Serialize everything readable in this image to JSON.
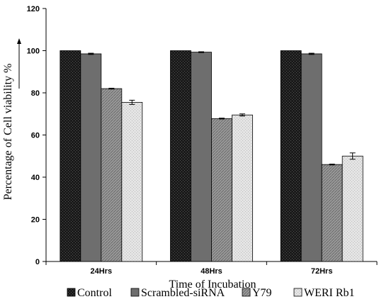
{
  "chart_data": {
    "type": "bar",
    "categories": [
      "24Hrs",
      "48Hrs",
      "72Hrs"
    ],
    "series": [
      {
        "name": "Control",
        "values": [
          100,
          100,
          100
        ],
        "errors": [
          0,
          0,
          0
        ],
        "pattern": "dark"
      },
      {
        "name": "Scrambled-siRNA",
        "values": [
          98.5,
          99.3,
          98.5
        ],
        "errors": [
          0.3,
          0.2,
          0.3
        ],
        "pattern": "grey"
      },
      {
        "name": "Y79",
        "values": [
          82,
          67.8,
          46
        ],
        "errors": [
          0.2,
          0.2,
          0.2
        ],
        "pattern": "hatch"
      },
      {
        "name": "WERI Rb1",
        "values": [
          75.5,
          69.5,
          50
        ],
        "errors": [
          1,
          0.5,
          1.5
        ],
        "pattern": "light"
      }
    ],
    "xlabel": "Time of Incubation",
    "ylabel": "Percentage of Cell viability %",
    "ylim": [
      0,
      120
    ],
    "yticks": [
      0,
      20,
      40,
      60,
      80,
      100,
      120
    ],
    "grid": false,
    "legend_position": "bottom"
  }
}
